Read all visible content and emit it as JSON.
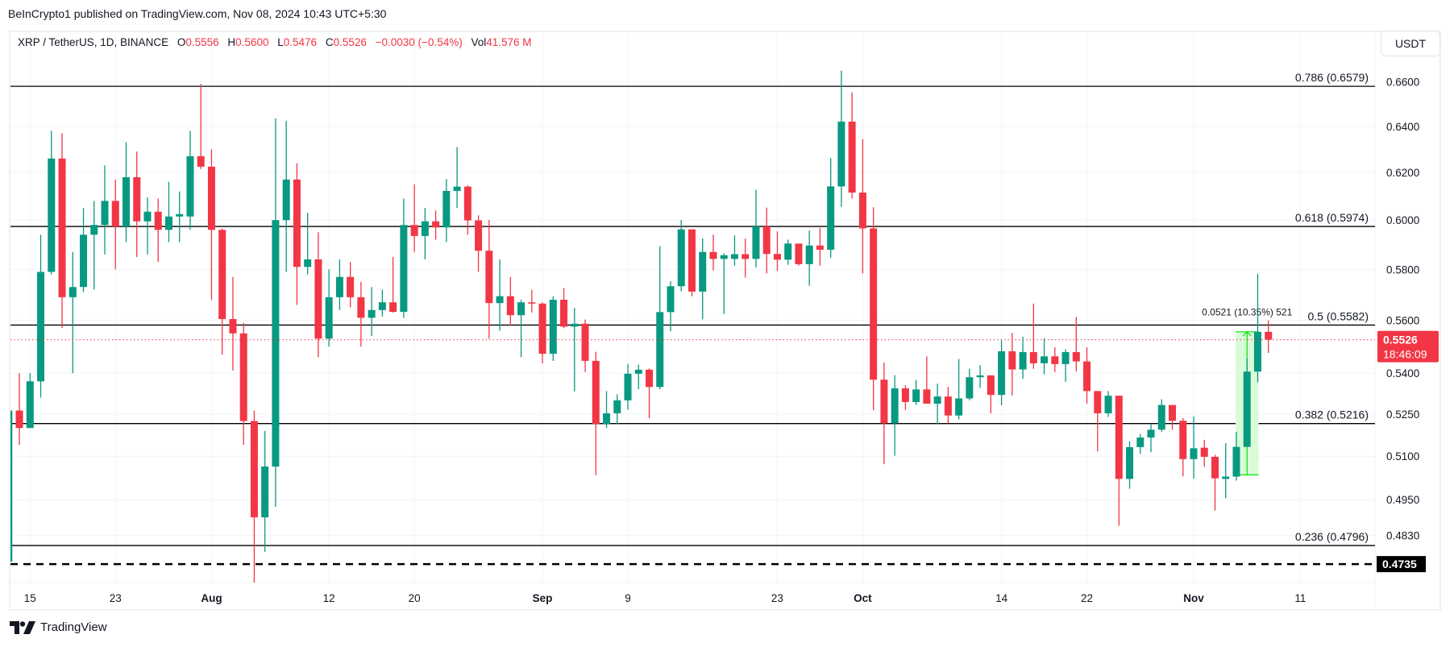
{
  "publisher_line": "BeInCrypto1 published on TradingView.com, Nov 08, 2024 10:43 UTC+5:30",
  "legend": {
    "symbol": "XRP / TetherUS, 1D, BINANCE",
    "open_label": "O",
    "open": "0.5556",
    "high_label": "H",
    "high": "0.5600",
    "low_label": "L",
    "low": "0.5476",
    "close_label": "C",
    "close": "0.5526",
    "change": "−0.0030 (−0.54%)",
    "vol_label": "Vol",
    "vol": "41.576 M"
  },
  "currency_button": "USDT",
  "branding": "TradingView",
  "colors": {
    "up": "#089981",
    "down": "#f23645",
    "grid": "#f0f3fa",
    "measure": "#00e600",
    "measure_fill": "#d9fbd8"
  },
  "current_price": {
    "value": "0.5526",
    "countdown": "18:46:09"
  },
  "support_marker": {
    "value": "0.4735",
    "price": 0.4735
  },
  "measure": {
    "label": "0.0521 (10.35%) 521",
    "from": 0.5035,
    "to": 0.5556,
    "start_index": 115,
    "end_index": 117
  },
  "chart_data": {
    "type": "candlestick",
    "title": "XRP / TetherUS, 1D, BINANCE",
    "ylabel": "USDT",
    "yscale": "log",
    "grid": true,
    "price_ticks": [
      "0.6600",
      "0.6400",
      "0.6200",
      "0.6000",
      "0.5800",
      "0.5600",
      "0.5400",
      "0.5250",
      "0.5100",
      "0.4950",
      "0.4830"
    ],
    "x_ticks": [
      {
        "label": "15",
        "index": 2,
        "major": false
      },
      {
        "label": "23",
        "index": 10,
        "major": false
      },
      {
        "label": "Aug",
        "index": 19,
        "major": true
      },
      {
        "label": "12",
        "index": 30,
        "major": false
      },
      {
        "label": "20",
        "index": 38,
        "major": false
      },
      {
        "label": "Sep",
        "index": 50,
        "major": true
      },
      {
        "label": "9",
        "index": 58,
        "major": false
      },
      {
        "label": "23",
        "index": 72,
        "major": false
      },
      {
        "label": "Oct",
        "index": 80,
        "major": true
      },
      {
        "label": "14",
        "index": 93,
        "major": false
      },
      {
        "label": "22",
        "index": 101,
        "major": false
      },
      {
        "label": "Nov",
        "index": 111,
        "major": true
      },
      {
        "label": "11",
        "index": 121,
        "major": false
      }
    ],
    "fib_levels": [
      {
        "label": "0.786 (0.6579)",
        "price": 0.6579
      },
      {
        "label": "0.618 (0.5974)",
        "price": 0.5974
      },
      {
        "label": "0.5 (0.5582)",
        "price": 0.5582
      },
      {
        "label": "0.382 (0.5216)",
        "price": 0.5216
      },
      {
        "label": "0.236 (0.4796)",
        "price": 0.4796
      }
    ],
    "ohlc": [
      [
        0.4743,
        0.528,
        0.47,
        0.5263
      ],
      [
        0.5263,
        0.54,
        0.514,
        0.52
      ],
      [
        0.52,
        0.54,
        0.52,
        0.537
      ],
      [
        0.537,
        0.594,
        0.531,
        0.579
      ],
      [
        0.579,
        0.638,
        0.578,
        0.626
      ],
      [
        0.626,
        0.637,
        0.557,
        0.569
      ],
      [
        0.569,
        0.587,
        0.54,
        0.573
      ],
      [
        0.573,
        0.605,
        0.571,
        0.594
      ],
      [
        0.594,
        0.608,
        0.572,
        0.598
      ],
      [
        0.598,
        0.623,
        0.586,
        0.608
      ],
      [
        0.608,
        0.617,
        0.58,
        0.5974
      ],
      [
        0.5974,
        0.633,
        0.591,
        0.618
      ],
      [
        0.618,
        0.629,
        0.585,
        0.5995
      ],
      [
        0.5995,
        0.6095,
        0.586,
        0.6035
      ],
      [
        0.6035,
        0.609,
        0.583,
        0.596
      ],
      [
        0.596,
        0.616,
        0.591,
        0.6015
      ],
      [
        0.6015,
        0.612,
        0.591,
        0.6025
      ],
      [
        0.6015,
        0.638,
        0.596,
        0.627
      ],
      [
        0.627,
        0.659,
        0.6215,
        0.6225
      ],
      [
        0.6225,
        0.63,
        0.568,
        0.596
      ],
      [
        0.596,
        0.5965,
        0.547,
        0.5605
      ],
      [
        0.5605,
        0.577,
        0.541,
        0.555
      ],
      [
        0.555,
        0.559,
        0.514,
        0.5225
      ],
      [
        0.5225,
        0.5263,
        0.43,
        0.489
      ],
      [
        0.489,
        0.519,
        0.4775,
        0.5064
      ],
      [
        0.5064,
        0.6435,
        0.4926,
        0.6
      ],
      [
        0.6,
        0.6425,
        0.579,
        0.617
      ],
      [
        0.617,
        0.624,
        0.566,
        0.581
      ],
      [
        0.581,
        0.603,
        0.578,
        0.584
      ],
      [
        0.584,
        0.595,
        0.546,
        0.553
      ],
      [
        0.553,
        0.58,
        0.55,
        0.569
      ],
      [
        0.569,
        0.584,
        0.564,
        0.577
      ],
      [
        0.577,
        0.583,
        0.565,
        0.569
      ],
      [
        0.569,
        0.575,
        0.55,
        0.561
      ],
      [
        0.561,
        0.573,
        0.554,
        0.564
      ],
      [
        0.564,
        0.572,
        0.5615,
        0.567
      ],
      [
        0.567,
        0.585,
        0.563,
        0.5633
      ],
      [
        0.5633,
        0.609,
        0.561,
        0.598
      ],
      [
        0.598,
        0.615,
        0.587,
        0.5935
      ],
      [
        0.5935,
        0.605,
        0.584,
        0.5995
      ],
      [
        0.5995,
        0.604,
        0.592,
        0.597
      ],
      [
        0.597,
        0.6172,
        0.591,
        0.6122
      ],
      [
        0.6122,
        0.631,
        0.605,
        0.614
      ],
      [
        0.614,
        0.6145,
        0.594,
        0.5999
      ],
      [
        0.5999,
        0.602,
        0.579,
        0.5875
      ],
      [
        0.5875,
        0.6,
        0.553,
        0.5667
      ],
      [
        0.5667,
        0.584,
        0.556,
        0.5694
      ],
      [
        0.5694,
        0.577,
        0.558,
        0.562
      ],
      [
        0.562,
        0.568,
        0.546,
        0.567
      ],
      [
        0.567,
        0.572,
        0.563,
        0.5665
      ],
      [
        0.5665,
        0.567,
        0.5436,
        0.5473
      ],
      [
        0.5473,
        0.5693,
        0.5446,
        0.568
      ],
      [
        0.568,
        0.5726,
        0.557,
        0.5576
      ],
      [
        0.5576,
        0.5648,
        0.5333,
        0.5587
      ],
      [
        0.5587,
        0.5603,
        0.5404,
        0.5446
      ],
      [
        0.5446,
        0.548,
        0.5034,
        0.5215
      ],
      [
        0.5215,
        0.5334,
        0.52,
        0.5253
      ],
      [
        0.5253,
        0.5322,
        0.5215,
        0.53
      ],
      [
        0.53,
        0.5434,
        0.5266,
        0.5398
      ],
      [
        0.5398,
        0.5432,
        0.5341,
        0.5413
      ],
      [
        0.5413,
        0.5418,
        0.5235,
        0.5349
      ],
      [
        0.5349,
        0.5893,
        0.534,
        0.5632
      ],
      [
        0.5632,
        0.5753,
        0.5558,
        0.5733
      ],
      [
        0.5733,
        0.6,
        0.5713,
        0.5962
      ],
      [
        0.5962,
        0.5962,
        0.5694,
        0.5712
      ],
      [
        0.5712,
        0.5925,
        0.5604,
        0.587
      ],
      [
        0.587,
        0.5941,
        0.5796,
        0.5842
      ],
      [
        0.5842,
        0.5864,
        0.5625,
        0.5857
      ],
      [
        0.5842,
        0.5937,
        0.5815,
        0.5861
      ],
      [
        0.5861,
        0.5924,
        0.5767,
        0.5842
      ],
      [
        0.5842,
        0.6127,
        0.5808,
        0.5974
      ],
      [
        0.5974,
        0.6052,
        0.5784,
        0.5862
      ],
      [
        0.5862,
        0.5954,
        0.5794,
        0.5839
      ],
      [
        0.5839,
        0.592,
        0.5818,
        0.5904
      ],
      [
        0.5904,
        0.5904,
        0.5815,
        0.5821
      ],
      [
        0.5821,
        0.5957,
        0.5735,
        0.5896
      ],
      [
        0.5896,
        0.5968,
        0.5815,
        0.5879
      ],
      [
        0.5879,
        0.6262,
        0.5847,
        0.6141
      ],
      [
        0.6141,
        0.665,
        0.6055,
        0.6421
      ],
      [
        0.6421,
        0.6552,
        0.609,
        0.6115
      ],
      [
        0.6115,
        0.6344,
        0.5784,
        0.5966
      ],
      [
        0.5966,
        0.6054,
        0.5264,
        0.5376
      ],
      [
        0.5376,
        0.544,
        0.5072,
        0.5217
      ],
      [
        0.5217,
        0.5393,
        0.5102,
        0.5344
      ],
      [
        0.5344,
        0.5356,
        0.5265,
        0.5294
      ],
      [
        0.5294,
        0.5375,
        0.5283,
        0.534
      ],
      [
        0.534,
        0.5463,
        0.5288,
        0.5288
      ],
      [
        0.5288,
        0.5361,
        0.5215,
        0.5314
      ],
      [
        0.5314,
        0.5349,
        0.5217,
        0.5245
      ],
      [
        0.5245,
        0.5453,
        0.5231,
        0.5307
      ],
      [
        0.5307,
        0.5416,
        0.53,
        0.5385
      ],
      [
        0.5385,
        0.543,
        0.5346,
        0.5392
      ],
      [
        0.5392,
        0.5392,
        0.5253,
        0.532
      ],
      [
        0.532,
        0.5524,
        0.5282,
        0.5482
      ],
      [
        0.5482,
        0.5552,
        0.5318,
        0.5414
      ],
      [
        0.5414,
        0.5537,
        0.5379,
        0.5479
      ],
      [
        0.5479,
        0.5665,
        0.5416,
        0.5437
      ],
      [
        0.5437,
        0.5531,
        0.5396,
        0.5463
      ],
      [
        0.5463,
        0.5497,
        0.5404,
        0.5434
      ],
      [
        0.5434,
        0.5489,
        0.5368,
        0.5479
      ],
      [
        0.5479,
        0.5613,
        0.5407,
        0.5444
      ],
      [
        0.5444,
        0.5497,
        0.5288,
        0.5334
      ],
      [
        0.5334,
        0.5334,
        0.5117,
        0.5253
      ],
      [
        0.5253,
        0.5334,
        0.524,
        0.5317
      ],
      [
        0.5317,
        0.5317,
        0.4862,
        0.5021
      ],
      [
        0.5021,
        0.5153,
        0.4987,
        0.5132
      ],
      [
        0.5132,
        0.5179,
        0.5108,
        0.5166
      ],
      [
        0.5166,
        0.5215,
        0.5114,
        0.5194
      ],
      [
        0.5194,
        0.5304,
        0.5186,
        0.5283
      ],
      [
        0.5283,
        0.5283,
        0.5194,
        0.5226
      ],
      [
        0.5226,
        0.5236,
        0.503,
        0.509
      ],
      [
        0.509,
        0.5242,
        0.5022,
        0.5128
      ],
      [
        0.513,
        0.5158,
        0.5063,
        0.5098
      ],
      [
        0.5098,
        0.5105,
        0.4913,
        0.5023
      ],
      [
        0.5021,
        0.5146,
        0.4955,
        0.5029
      ],
      [
        0.5029,
        0.5186,
        0.5015,
        0.5133
      ],
      [
        0.5133,
        0.5455,
        0.5133,
        0.5406
      ],
      [
        0.5406,
        0.5783,
        0.5366,
        0.5556
      ],
      [
        0.5556,
        0.56,
        0.5476,
        0.5526
      ]
    ]
  }
}
